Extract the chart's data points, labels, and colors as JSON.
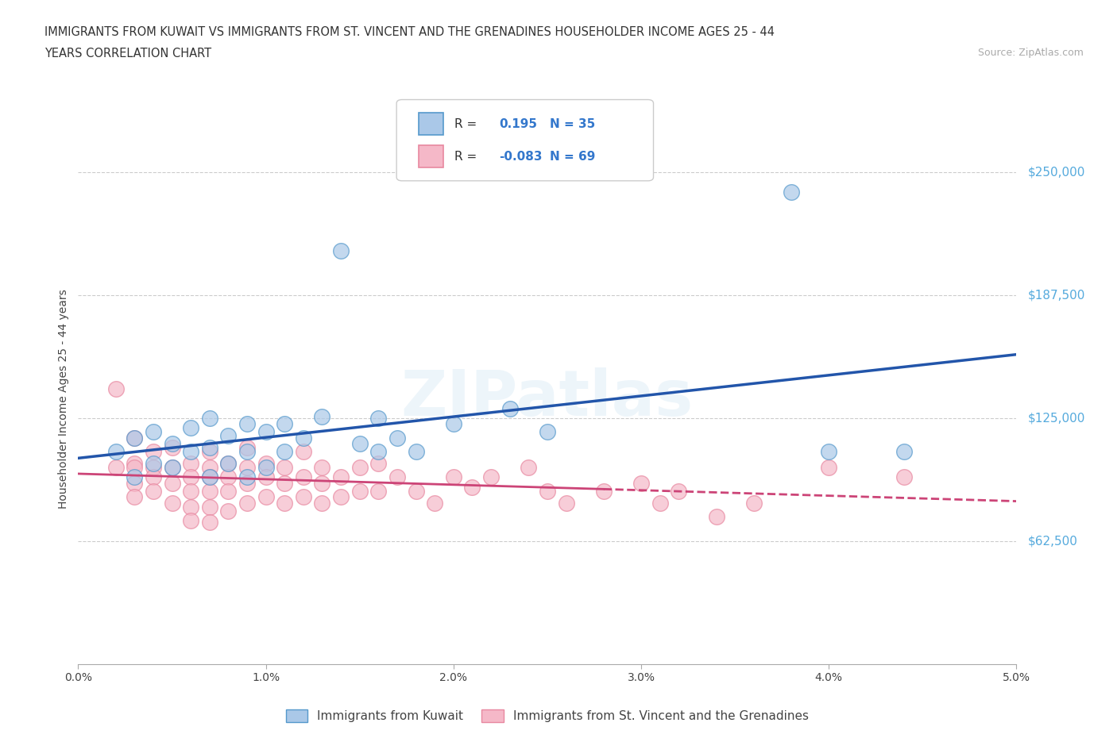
{
  "title_line1": "IMMIGRANTS FROM KUWAIT VS IMMIGRANTS FROM ST. VINCENT AND THE GRENADINES HOUSEHOLDER INCOME AGES 25 - 44",
  "title_line2": "YEARS CORRELATION CHART",
  "source_text": "Source: ZipAtlas.com",
  "ylabel": "Householder Income Ages 25 - 44 years",
  "xlim": [
    0.0,
    0.05
  ],
  "ylim": [
    0,
    270000
  ],
  "yticks": [
    62500,
    125000,
    187500,
    250000
  ],
  "ytick_labels": [
    "$62,500",
    "$125,000",
    "$187,500",
    "$250,000"
  ],
  "xticks": [
    0.0,
    0.01,
    0.02,
    0.03,
    0.04,
    0.05
  ],
  "xtick_labels": [
    "0.0%",
    "1.0%",
    "2.0%",
    "3.0%",
    "4.0%",
    "5.0%"
  ],
  "grid_color": "#cccccc",
  "background_color": "#ffffff",
  "series1_name": "Immigrants from Kuwait",
  "series1_line_color": "#2255aa",
  "series1_marker_face": "#aac8e8",
  "series1_marker_edge": "#5599cc",
  "series1_R": "0.195",
  "series1_N": "35",
  "series2_name": "Immigrants from St. Vincent and the Grenadines",
  "series2_line_color": "#cc4477",
  "series2_marker_face": "#f5b8c8",
  "series2_marker_edge": "#e888a0",
  "series2_R": "-0.083",
  "series2_N": "69",
  "kuwait_x": [
    0.002,
    0.003,
    0.003,
    0.004,
    0.004,
    0.005,
    0.005,
    0.006,
    0.006,
    0.007,
    0.007,
    0.007,
    0.008,
    0.008,
    0.009,
    0.009,
    0.009,
    0.01,
    0.01,
    0.011,
    0.011,
    0.012,
    0.013,
    0.014,
    0.015,
    0.016,
    0.016,
    0.017,
    0.018,
    0.02,
    0.023,
    0.025,
    0.038,
    0.04,
    0.044
  ],
  "kuwait_y": [
    108000,
    95000,
    115000,
    102000,
    118000,
    100000,
    112000,
    108000,
    120000,
    95000,
    110000,
    125000,
    102000,
    116000,
    95000,
    108000,
    122000,
    100000,
    118000,
    108000,
    122000,
    115000,
    126000,
    210000,
    112000,
    108000,
    125000,
    115000,
    108000,
    122000,
    130000,
    118000,
    240000,
    108000,
    108000
  ],
  "vincent_x": [
    0.002,
    0.002,
    0.003,
    0.003,
    0.003,
    0.003,
    0.003,
    0.004,
    0.004,
    0.004,
    0.004,
    0.005,
    0.005,
    0.005,
    0.005,
    0.006,
    0.006,
    0.006,
    0.006,
    0.006,
    0.007,
    0.007,
    0.007,
    0.007,
    0.007,
    0.007,
    0.008,
    0.008,
    0.008,
    0.008,
    0.009,
    0.009,
    0.009,
    0.009,
    0.01,
    0.01,
    0.01,
    0.011,
    0.011,
    0.011,
    0.012,
    0.012,
    0.012,
    0.013,
    0.013,
    0.013,
    0.014,
    0.014,
    0.015,
    0.015,
    0.016,
    0.016,
    0.017,
    0.018,
    0.019,
    0.02,
    0.021,
    0.022,
    0.024,
    0.025,
    0.026,
    0.028,
    0.03,
    0.031,
    0.032,
    0.034,
    0.036,
    0.04,
    0.044
  ],
  "vincent_y": [
    140000,
    100000,
    115000,
    102000,
    100000,
    92000,
    85000,
    108000,
    100000,
    95000,
    88000,
    110000,
    100000,
    92000,
    82000,
    102000,
    95000,
    88000,
    80000,
    73000,
    108000,
    100000,
    95000,
    88000,
    80000,
    72000,
    102000,
    95000,
    88000,
    78000,
    110000,
    100000,
    92000,
    82000,
    102000,
    95000,
    85000,
    100000,
    92000,
    82000,
    108000,
    95000,
    85000,
    100000,
    92000,
    82000,
    95000,
    85000,
    100000,
    88000,
    102000,
    88000,
    95000,
    88000,
    82000,
    95000,
    90000,
    95000,
    100000,
    88000,
    82000,
    88000,
    92000,
    82000,
    88000,
    75000,
    82000,
    100000,
    95000
  ]
}
